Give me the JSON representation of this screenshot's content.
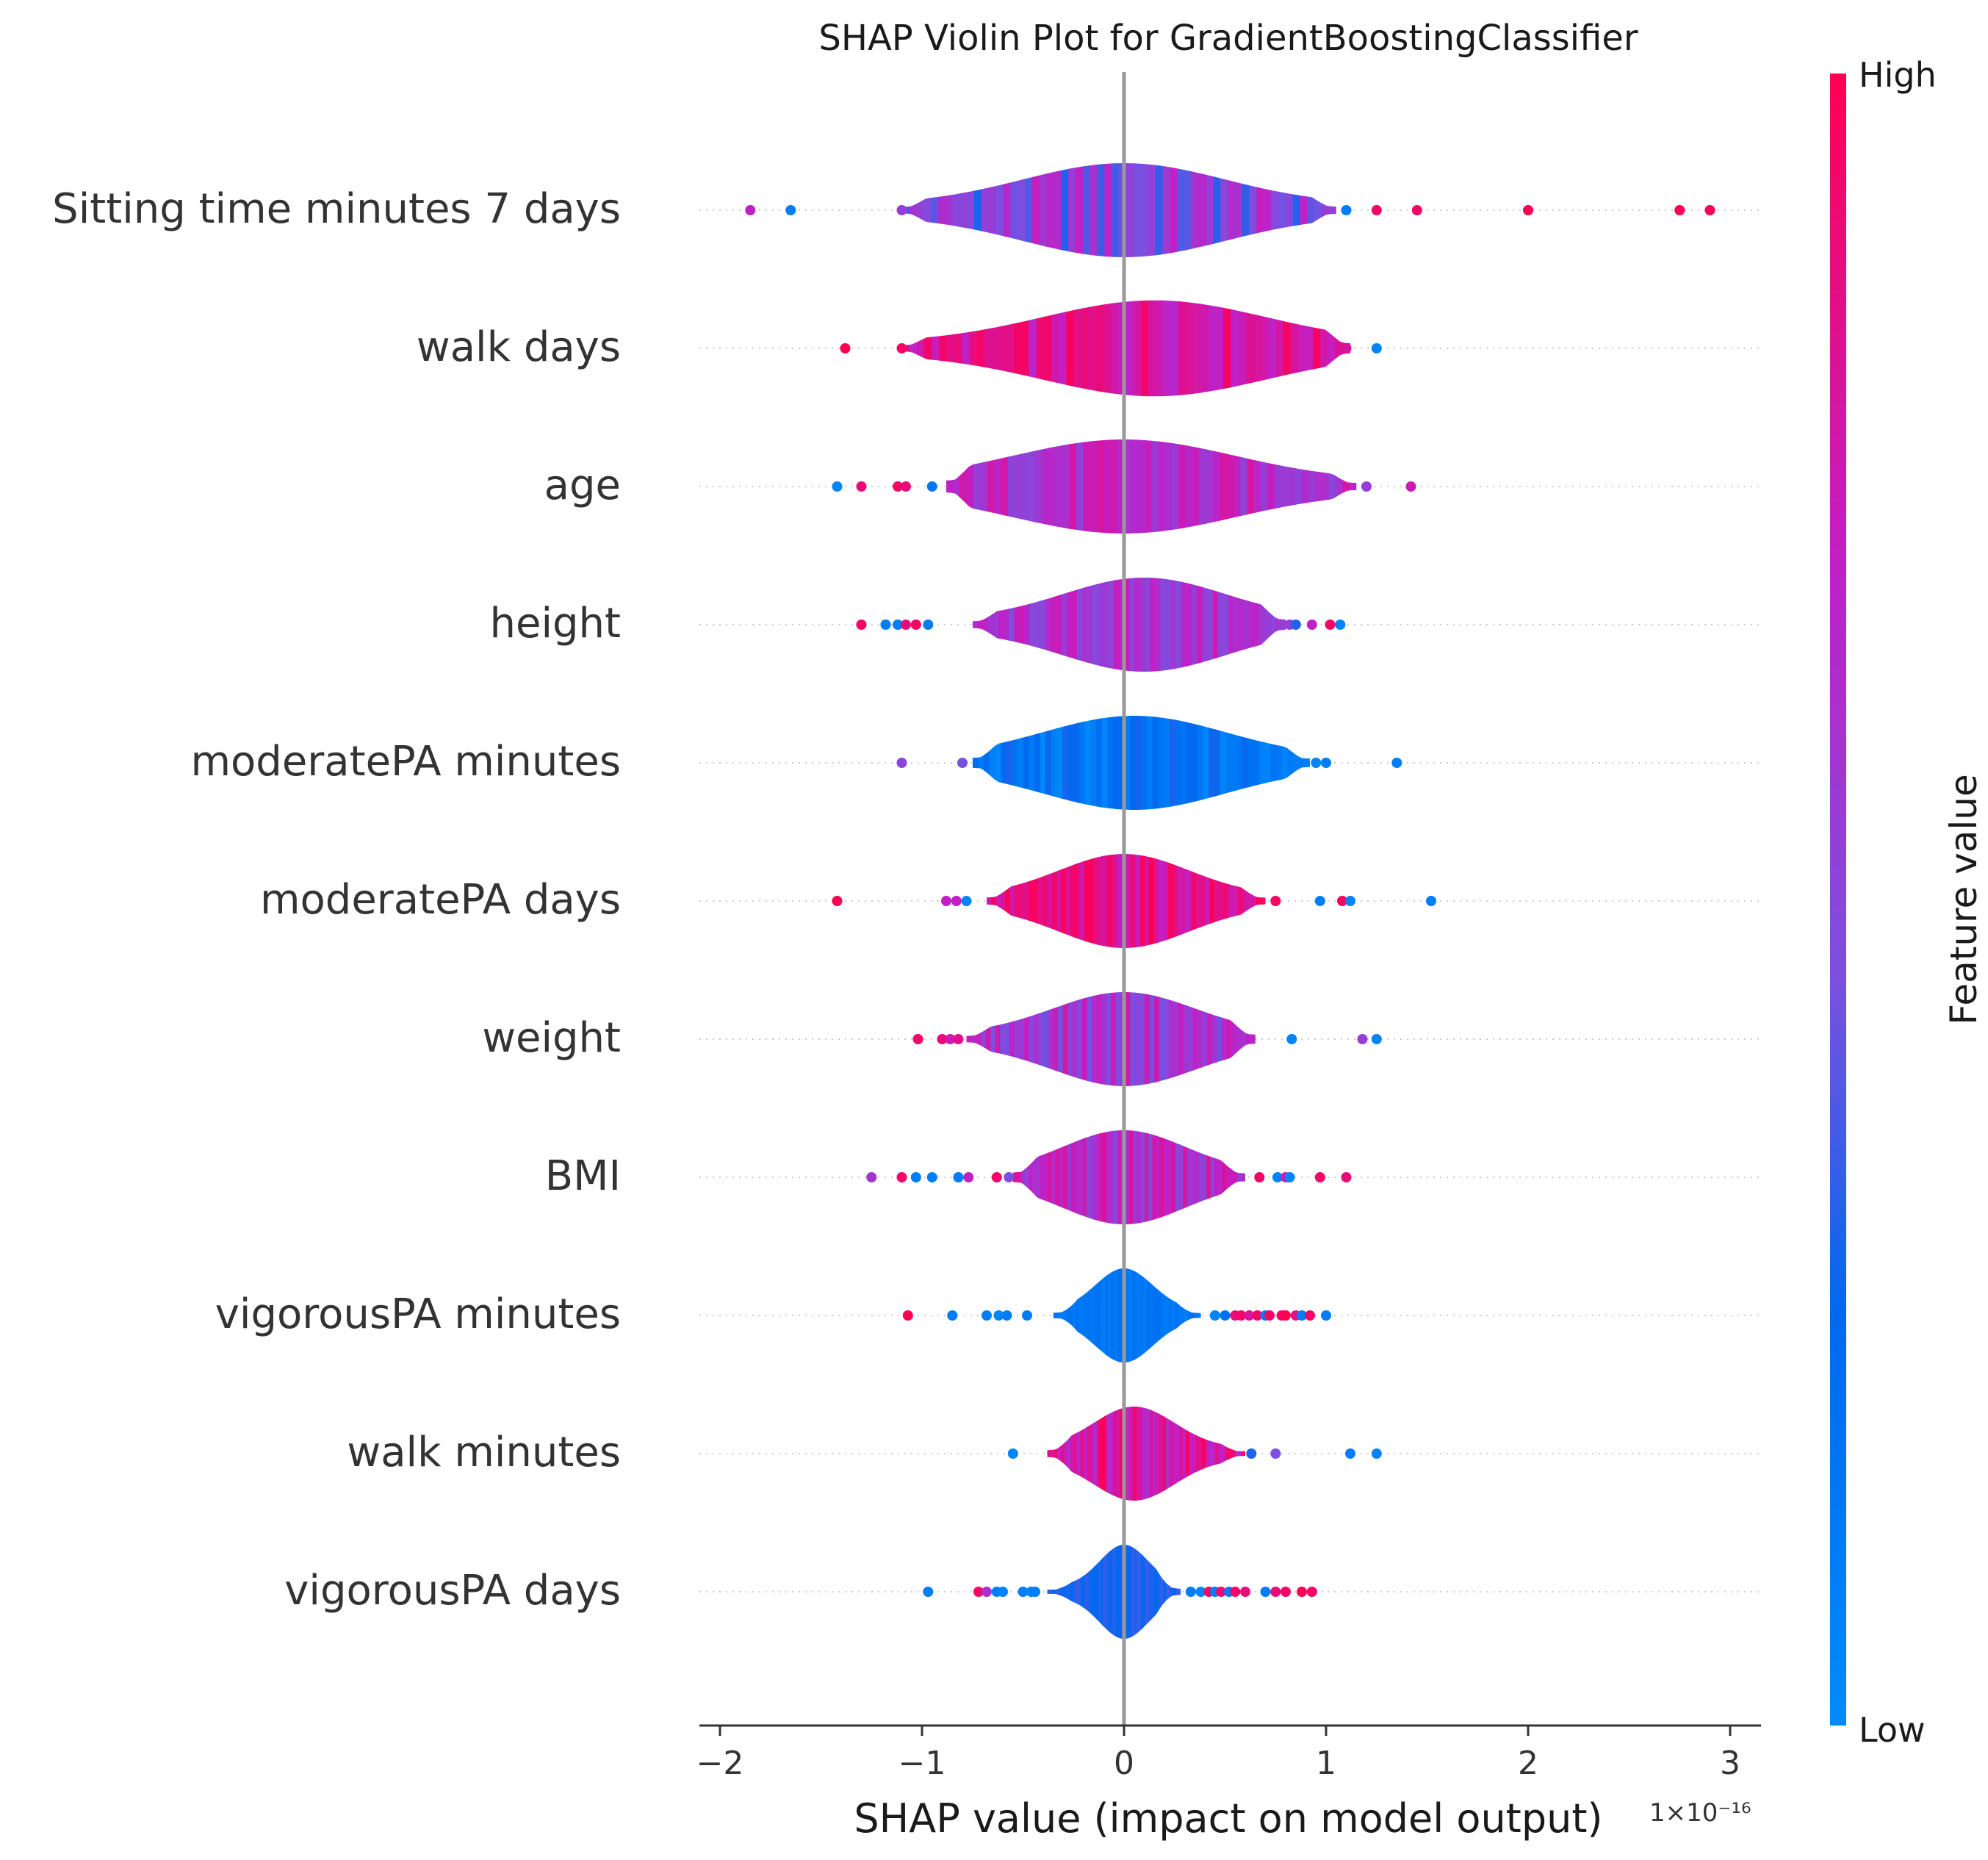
{
  "chart_data": {
    "type": "violin",
    "title": "SHAP Violin Plot for GradientBoostingClassifier",
    "xlabel": "SHAP value (impact on model output)",
    "x_offset_label": "1×10⁻¹⁶",
    "x_unit_scale": 1e-16,
    "xlim": [
      -2.1,
      3.15
    ],
    "x_ticks": [
      -2,
      -1,
      0,
      1,
      2,
      3
    ],
    "x_tick_labels": [
      "−2",
      "−1",
      "0",
      "1",
      "2",
      "3"
    ],
    "colorbar": {
      "label": "Feature value",
      "high_label": "High",
      "low_label": "Low",
      "colors": [
        "#008bfb",
        "#0068f0",
        "#7b50e0",
        "#c120c6",
        "#ff0052"
      ]
    },
    "features": [
      {
        "name": "Sitting time minutes 7 days",
        "body": [
          -1.1,
          1.05
        ],
        "width": 1.0,
        "peak": 0.0,
        "spread": 0.5,
        "tone": 0.5,
        "noise": 0.22,
        "points": [
          [
            -1.85,
            0.7
          ],
          [
            -1.65,
            0.1
          ],
          [
            -1.1,
            0.55
          ],
          [
            1.1,
            0.1
          ],
          [
            1.25,
            0.95
          ],
          [
            1.45,
            0.95
          ],
          [
            2.0,
            1.0
          ],
          [
            2.75,
            1.0
          ],
          [
            2.9,
            1.0
          ]
        ]
      },
      {
        "name": "walk days",
        "body": [
          -1.1,
          1.12
        ],
        "width": 1.02,
        "peak": 0.15,
        "spread": 0.55,
        "tone": 0.82,
        "noise": 0.15,
        "points": [
          [
            -1.38,
            1.0
          ],
          [
            -1.1,
            0.95
          ],
          [
            1.1,
            0.8
          ],
          [
            1.25,
            0.05
          ]
        ]
      },
      {
        "name": "age",
        "body": [
          -0.88,
          1.15
        ],
        "width": 1.0,
        "peak": 0.0,
        "spread": 0.55,
        "tone": 0.65,
        "noise": 0.15,
        "points": [
          [
            -1.42,
            0.05
          ],
          [
            -1.3,
            0.9
          ],
          [
            -1.12,
            0.95
          ],
          [
            -1.08,
            0.9
          ],
          [
            -0.95,
            0.15
          ],
          [
            1.2,
            0.55
          ],
          [
            1.42,
            0.75
          ]
        ]
      },
      {
        "name": "height",
        "body": [
          -0.75,
          0.8
        ],
        "width": 1.0,
        "peak": 0.1,
        "spread": 0.4,
        "tone": 0.6,
        "noise": 0.15,
        "points": [
          [
            -1.3,
            0.95
          ],
          [
            -1.18,
            0.1
          ],
          [
            -1.12,
            0.1
          ],
          [
            -1.08,
            0.9
          ],
          [
            -1.03,
            0.95
          ],
          [
            -0.97,
            0.1
          ],
          [
            0.82,
            0.55
          ],
          [
            0.85,
            0.3
          ],
          [
            0.93,
            0.7
          ],
          [
            1.02,
            0.95
          ],
          [
            1.07,
            0.05
          ]
        ]
      },
      {
        "name": "moderatePA minutes",
        "body": [
          -0.75,
          0.92
        ],
        "width": 1.0,
        "peak": 0.05,
        "spread": 0.45,
        "tone": 0.15,
        "noise": 0.15,
        "points": [
          [
            -1.1,
            0.5
          ],
          [
            -0.8,
            0.45
          ],
          [
            0.95,
            0.05
          ],
          [
            1.0,
            0.1
          ],
          [
            1.35,
            0.1
          ]
        ]
      },
      {
        "name": "moderatePA days",
        "body": [
          -0.68,
          0.7
        ],
        "width": 1.0,
        "peak": 0.0,
        "spread": 0.32,
        "tone": 0.85,
        "noise": 0.15,
        "points": [
          [
            -1.42,
            1.0
          ],
          [
            -0.88,
            0.7
          ],
          [
            -0.83,
            0.7
          ],
          [
            -0.78,
            0.05
          ],
          [
            0.75,
            0.95
          ],
          [
            0.97,
            0.1
          ],
          [
            1.08,
            0.95
          ],
          [
            1.12,
            0.05
          ],
          [
            1.52,
            0.1
          ]
        ]
      },
      {
        "name": "weight",
        "body": [
          -0.78,
          0.65
        ],
        "width": 1.0,
        "peak": 0.0,
        "spread": 0.35,
        "tone": 0.6,
        "noise": 0.18,
        "points": [
          [
            -1.02,
            0.95
          ],
          [
            -0.9,
            0.9
          ],
          [
            -0.86,
            0.75
          ],
          [
            -0.82,
            0.85
          ],
          [
            0.83,
            0.05
          ],
          [
            1.18,
            0.55
          ],
          [
            1.25,
            0.05
          ]
        ]
      },
      {
        "name": "BMI",
        "body": [
          -0.55,
          0.6
        ],
        "width": 1.0,
        "peak": 0.0,
        "spread": 0.3,
        "tone": 0.65,
        "noise": 0.18,
        "points": [
          [
            -1.25,
            0.6
          ],
          [
            -1.1,
            0.95
          ],
          [
            -1.03,
            0.1
          ],
          [
            -0.95,
            0.1
          ],
          [
            -0.82,
            0.1
          ],
          [
            -0.77,
            0.7
          ],
          [
            -0.63,
            0.95
          ],
          [
            -0.57,
            0.45
          ],
          [
            0.67,
            0.95
          ],
          [
            0.76,
            0.05
          ],
          [
            0.8,
            0.75
          ],
          [
            0.82,
            0.05
          ],
          [
            0.97,
            0.95
          ],
          [
            1.1,
            0.9
          ]
        ]
      },
      {
        "name": "vigorousPA minutes",
        "body": [
          -0.35,
          0.38
        ],
        "width": 1.0,
        "peak": 0.0,
        "spread": 0.14,
        "tone": 0.15,
        "noise": 0.05,
        "points": [
          [
            -1.07,
            1.0
          ],
          [
            -0.85,
            0.1
          ],
          [
            -0.68,
            0.1
          ],
          [
            -0.62,
            0.05
          ],
          [
            -0.58,
            0.1
          ],
          [
            -0.48,
            0.1
          ],
          [
            0.45,
            0.05
          ],
          [
            0.5,
            0.2
          ],
          [
            0.55,
            0.9
          ],
          [
            0.58,
            0.95
          ],
          [
            0.62,
            0.8
          ],
          [
            0.66,
            0.95
          ],
          [
            0.7,
            0.1
          ],
          [
            0.72,
            0.95
          ],
          [
            0.78,
            0.95
          ],
          [
            0.8,
            1.0
          ],
          [
            0.85,
            0.85
          ],
          [
            0.88,
            0.1
          ],
          [
            0.92,
            0.95
          ],
          [
            1.0,
            0.1
          ]
        ]
      },
      {
        "name": "walk minutes",
        "body": [
          -0.38,
          0.6
        ],
        "width": 1.0,
        "peak": 0.05,
        "spread": 0.2,
        "tone": 0.82,
        "noise": 0.2,
        "points": [
          [
            -0.55,
            0.05
          ],
          [
            0.63,
            0.3
          ],
          [
            0.75,
            0.45
          ],
          [
            1.12,
            0.1
          ],
          [
            1.25,
            0.05
          ]
        ]
      },
      {
        "name": "vigorousPA days",
        "body": [
          -0.38,
          0.28
        ],
        "width": 1.0,
        "peak": 0.0,
        "spread": 0.12,
        "tone": 0.3,
        "noise": 0.06,
        "points": [
          [
            -0.97,
            0.1
          ],
          [
            -0.72,
            0.95
          ],
          [
            -0.68,
            0.6
          ],
          [
            -0.63,
            0.1
          ],
          [
            -0.6,
            0.05
          ],
          [
            -0.5,
            0.1
          ],
          [
            -0.46,
            0.05
          ],
          [
            -0.44,
            0.1
          ],
          [
            0.33,
            0.1
          ],
          [
            0.38,
            0.05
          ],
          [
            0.42,
            0.95
          ],
          [
            0.45,
            0.1
          ],
          [
            0.48,
            0.9
          ],
          [
            0.52,
            0.1
          ],
          [
            0.55,
            0.95
          ],
          [
            0.6,
            0.9
          ],
          [
            0.7,
            0.1
          ],
          [
            0.75,
            0.9
          ],
          [
            0.8,
            0.95
          ],
          [
            0.88,
            1.0
          ],
          [
            0.93,
            0.95
          ]
        ]
      }
    ]
  }
}
